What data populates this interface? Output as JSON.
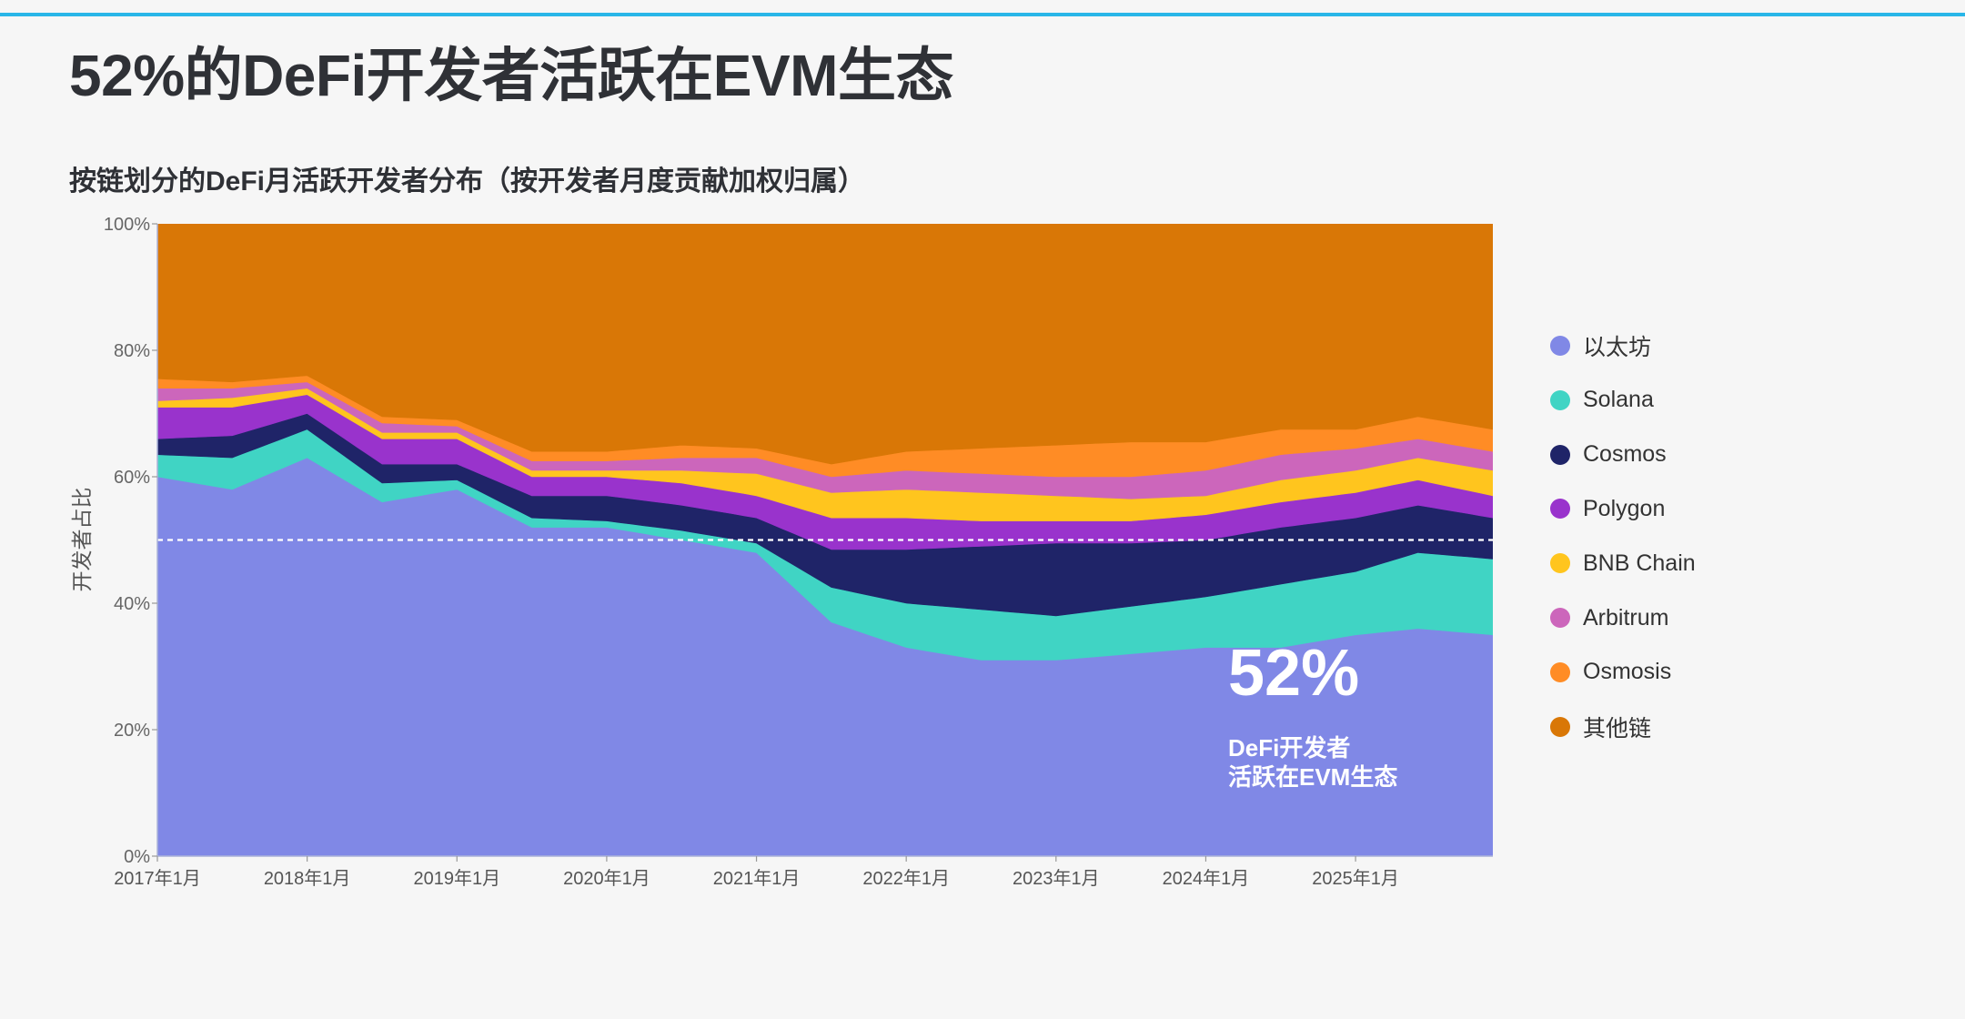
{
  "page": {
    "title": "52%的DeFi开发者活跃在EVM生态"
  },
  "callout": {
    "value": "52%",
    "line1": "DeFi开发者",
    "line2": "活跃在EVM生态"
  },
  "colors": {
    "accent_rule": "#29b6e8",
    "reference_line": "#ffffff"
  },
  "chart_data": {
    "type": "area",
    "stacked": true,
    "normalized": true,
    "title": "按链划分的DeFi月活跃开发者分布（按开发者月度贡献加权归属）",
    "xlabel": "",
    "ylabel": "开发者占比",
    "ylim": [
      0,
      100
    ],
    "yticks": [
      "0%",
      "20%",
      "40%",
      "60%",
      "80%",
      "100%"
    ],
    "xticks": [
      "2017年1月",
      "2018年1月",
      "2019年1月",
      "2020年1月",
      "2021年1月",
      "2022年1月",
      "2023年1月",
      "2024年1月",
      "2025年1月"
    ],
    "x_start": "2017-01",
    "x_end": "2025-12",
    "reference_line": {
      "y": 50,
      "style": "dashed"
    },
    "legend_position": "right",
    "grid": false,
    "key_dates": [
      "2017-01",
      "2017-07",
      "2018-01",
      "2018-07",
      "2019-01",
      "2019-07",
      "2020-01",
      "2020-07",
      "2021-01",
      "2021-07",
      "2022-01",
      "2022-07",
      "2023-01",
      "2023-07",
      "2024-01",
      "2024-07",
      "2025-01",
      "2025-06",
      "2025-12"
    ],
    "series": [
      {
        "name": "以太坊",
        "color": "#8088e6",
        "values": [
          60,
          58,
          63,
          56,
          58,
          52,
          52,
          50,
          48,
          37,
          33,
          31,
          31,
          32,
          33,
          33,
          35,
          36,
          35
        ]
      },
      {
        "name": "Solana",
        "color": "#40d4c4",
        "values": [
          3.5,
          5,
          4.5,
          3,
          1.5,
          1.5,
          1,
          1.5,
          1.5,
          5.5,
          7,
          8,
          7,
          7.5,
          8,
          10,
          10,
          12,
          12
        ]
      },
      {
        "name": "Cosmos",
        "color": "#1f2468",
        "values": [
          2.5,
          3.5,
          2.5,
          3,
          2.5,
          3.5,
          4,
          4,
          4,
          6,
          8.5,
          10,
          11.5,
          10,
          9,
          9,
          8.5,
          7.5,
          6.5
        ]
      },
      {
        "name": "Polygon",
        "color": "#9933cc",
        "values": [
          5,
          4.5,
          3,
          4,
          4,
          3,
          3,
          3.5,
          3.5,
          5,
          5,
          4,
          3.5,
          3.5,
          4,
          4,
          4,
          4,
          3.5
        ]
      },
      {
        "name": "BNB Chain",
        "color": "#ffc51e",
        "values": [
          1,
          1.5,
          1,
          1,
          1,
          1,
          1,
          2,
          3.5,
          4,
          4.5,
          4.5,
          4,
          3.5,
          3,
          3.5,
          3.5,
          3.5,
          4
        ]
      },
      {
        "name": "Arbitrum",
        "color": "#cc66bb",
        "values": [
          2,
          1.5,
          1,
          1.5,
          1,
          1.5,
          1.5,
          2,
          2.5,
          2.5,
          3,
          3,
          3,
          3.5,
          4,
          4,
          3.5,
          3,
          3
        ]
      },
      {
        "name": "Osmosis",
        "color": "#ff8c25",
        "values": [
          1.5,
          1,
          1,
          1,
          1,
          1.5,
          1.5,
          2,
          1.5,
          2,
          3,
          4,
          5,
          5.5,
          4.5,
          4,
          3,
          3.5,
          3.5
        ]
      },
      {
        "name": "其他链",
        "color": "#d97706",
        "values": [
          24.5,
          25,
          24,
          30.5,
          31,
          36,
          35.5,
          35,
          35.5,
          38,
          36,
          35.5,
          35,
          34.5,
          34.5,
          32.5,
          32,
          30.5,
          32.5
        ]
      }
    ]
  }
}
